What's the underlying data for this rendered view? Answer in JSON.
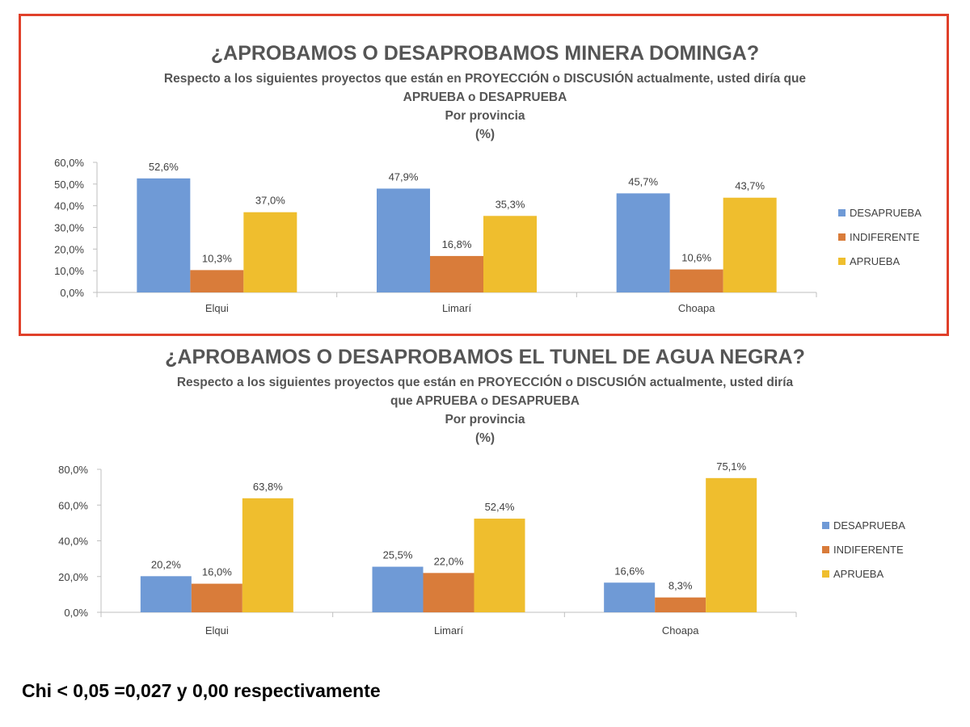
{
  "colors": {
    "desaprueba": "#6f9ad6",
    "indiferente": "#d97c3a",
    "aprueba": "#efbe2e",
    "highlight_border": "#e0402a",
    "axis": "#bfbfbf",
    "text": "#404040"
  },
  "chart_data": [
    {
      "type": "bar",
      "title": "¿APROBAMOS O DESAPROBAMOS MINERA DOMINGA?",
      "subtitle_lines": [
        "Respecto a los siguientes proyectos que están en PROYECCIÓN o DISCUSIÓN actualmente, usted diría que",
        "APRUEBA o DESAPRUEBA",
        "Por provincia",
        "(%)"
      ],
      "categories": [
        "Elqui",
        "Limarí",
        "Choapa"
      ],
      "series": [
        {
          "name": "DESAPRUEBA",
          "values": [
            52.6,
            47.9,
            45.7
          ],
          "labels": [
            "52,6%",
            "47,9%",
            "45,7%"
          ],
          "color_key": "desaprueba"
        },
        {
          "name": "INDIFERENTE",
          "values": [
            10.3,
            16.8,
            10.6
          ],
          "labels": [
            "10,3%",
            "16,8%",
            "10,6%"
          ],
          "color_key": "indiferente"
        },
        {
          "name": "APRUEBA",
          "values": [
            37.0,
            35.3,
            43.7
          ],
          "labels": [
            "37,0%",
            "35,3%",
            "43,7%"
          ],
          "color_key": "aprueba"
        }
      ],
      "ylim": [
        0,
        60
      ],
      "yticks": [
        0,
        10,
        20,
        30,
        40,
        50,
        60
      ],
      "ytick_labels": [
        "0,0%",
        "10,0%",
        "20,0%",
        "30,0%",
        "40,0%",
        "50,0%",
        "60,0%"
      ],
      "grid": false,
      "legend": "right"
    },
    {
      "type": "bar",
      "title": "¿APROBAMOS O DESAPROBAMOS EL TUNEL DE AGUA NEGRA?",
      "subtitle_lines": [
        "Respecto a los siguientes proyectos que están en PROYECCIÓN o DISCUSIÓN actualmente, usted diría",
        "que APRUEBA o DESAPRUEBA",
        "Por provincia",
        "(%)"
      ],
      "categories": [
        "Elqui",
        "Limarí",
        "Choapa"
      ],
      "series": [
        {
          "name": "DESAPRUEBA",
          "values": [
            20.2,
            25.5,
            16.6
          ],
          "labels": [
            "20,2%",
            "25,5%",
            "16,6%"
          ],
          "color_key": "desaprueba"
        },
        {
          "name": "INDIFERENTE",
          "values": [
            16.0,
            22.0,
            8.3
          ],
          "labels": [
            "16,0%",
            "22,0%",
            "8,3%"
          ],
          "color_key": "indiferente"
        },
        {
          "name": "APRUEBA",
          "values": [
            63.8,
            52.4,
            75.1
          ],
          "labels": [
            "63,8%",
            "52,4%",
            "75,1%"
          ],
          "color_key": "aprueba"
        }
      ],
      "ylim": [
        0,
        80
      ],
      "yticks": [
        0,
        20,
        40,
        60,
        80
      ],
      "ytick_labels": [
        "0,0%",
        "20,0%",
        "40,0%",
        "60,0%",
        "80,0%"
      ],
      "grid": false,
      "legend": "right"
    }
  ],
  "footnote": "Chi < 0,05 =0,027 y 0,00 respectivamente"
}
